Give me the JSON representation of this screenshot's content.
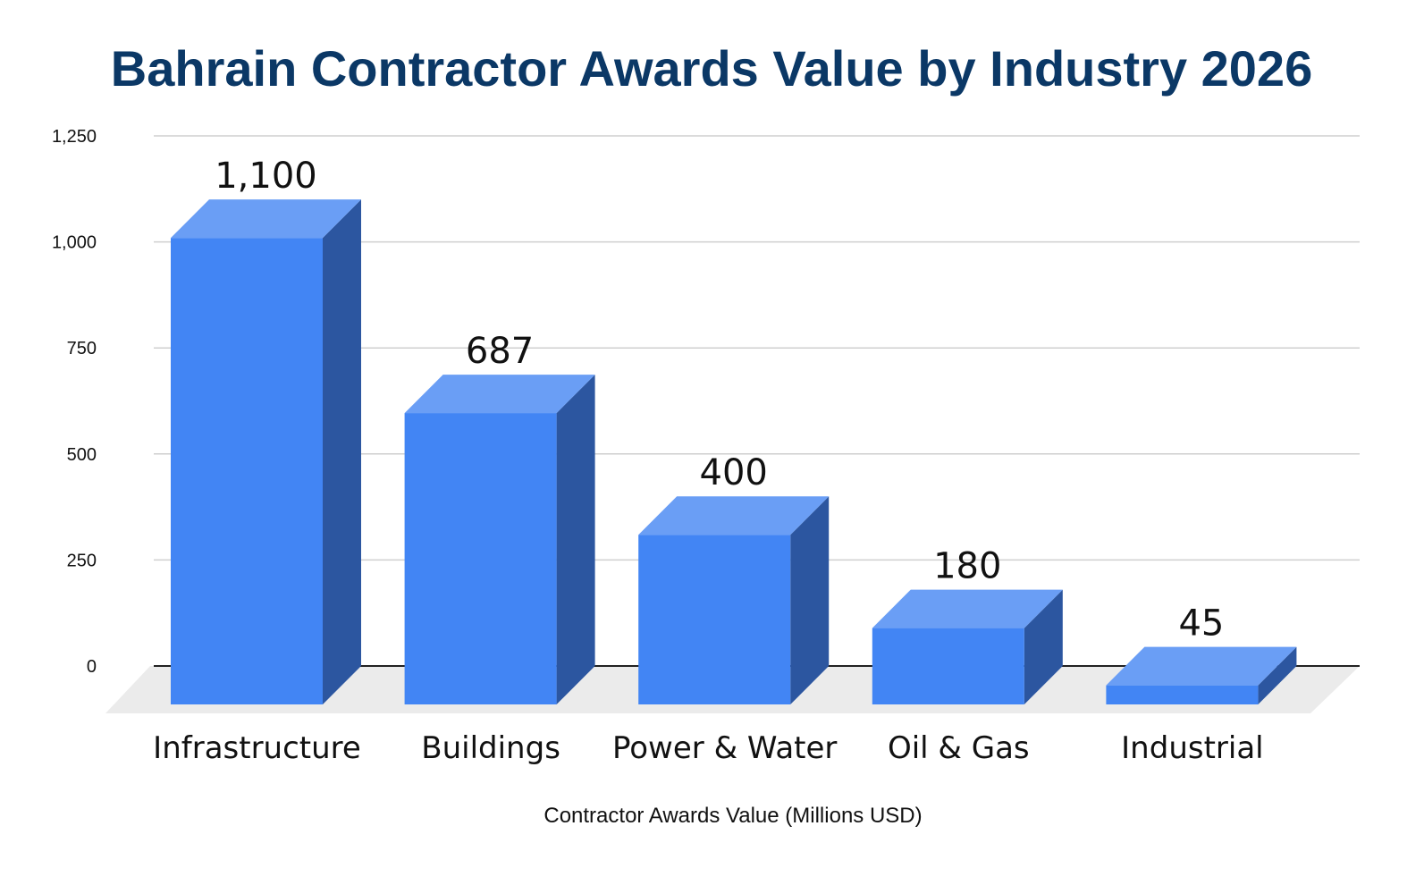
{
  "chart_data": {
    "type": "bar",
    "title": "Bahrain Contractor Awards Value by Industry 2026",
    "xlabel": "Contractor Awards Value (Millions USD)",
    "ylabel": "",
    "categories": [
      "Infrastructure",
      "Buildings",
      "Power & Water",
      "Oil & Gas",
      "Industrial"
    ],
    "values": [
      1100,
      687,
      400,
      180,
      45
    ],
    "data_labels": [
      "1,100",
      "687",
      "400",
      "180",
      "45"
    ],
    "ylim": [
      0,
      1250
    ],
    "yticks": [
      0,
      250,
      500,
      750,
      1000,
      1250
    ],
    "ytick_labels": [
      "0",
      "250",
      "500",
      "750",
      "1,000",
      "1,250"
    ],
    "grid": true,
    "style": "3d-column",
    "colors": {
      "bar_front": "#4285f4",
      "bar_top": "#6a9ef5",
      "bar_side": "#2c56a0",
      "floor": "#ebebeb",
      "title": "#0b3866"
    }
  }
}
